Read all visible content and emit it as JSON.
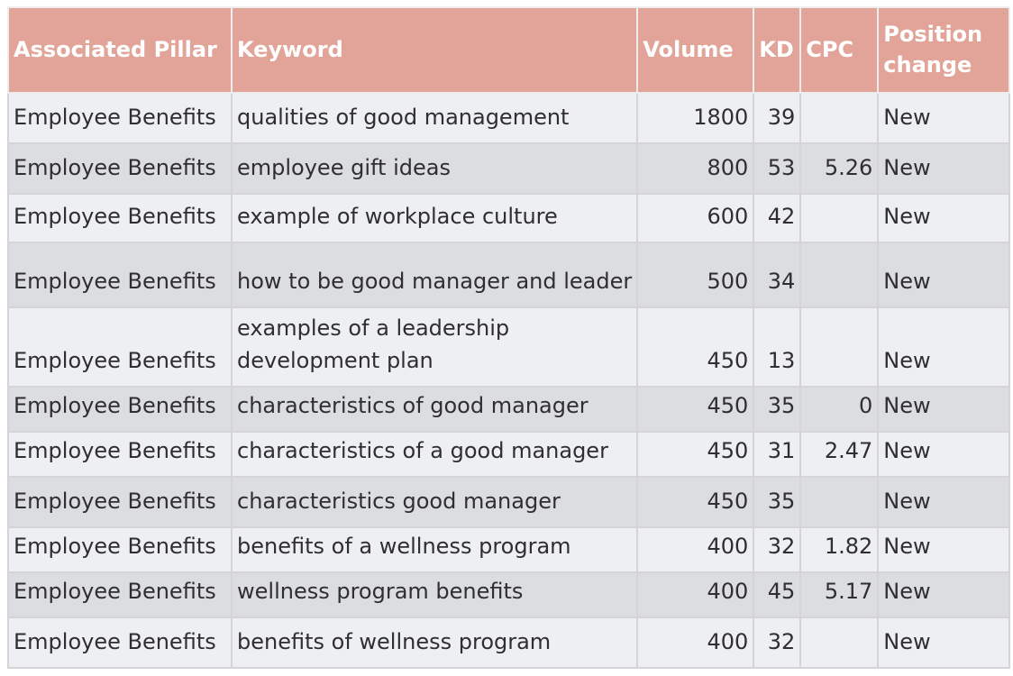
{
  "table": {
    "headers": [
      "Associated Pillar",
      "Keyword",
      "Volume",
      "KD",
      "CPC",
      "Position change"
    ],
    "rows": [
      {
        "pillar": "Employee Benefits",
        "keyword": "qualities of good management",
        "volume": "1800",
        "kd": "39",
        "cpc": "",
        "position": "New"
      },
      {
        "pillar": "Employee Benefits",
        "keyword": "employee gift ideas",
        "volume": "800",
        "kd": "53",
        "cpc": "5.26",
        "position": "New"
      },
      {
        "pillar": "Employee Benefits",
        "keyword": "example of workplace culture",
        "volume": "600",
        "kd": "42",
        "cpc": "",
        "position": "New"
      },
      {
        "pillar": "Employee Benefits",
        "keyword": "how to be good manager and leader",
        "volume": "500",
        "kd": "34",
        "cpc": "",
        "position": "New"
      },
      {
        "pillar": "Employee Benefits",
        "keyword": "examples of a leadership development plan",
        "volume": "450",
        "kd": "13",
        "cpc": "",
        "position": "New"
      },
      {
        "pillar": "Employee Benefits",
        "keyword": "characteristics of good manager",
        "volume": "450",
        "kd": "35",
        "cpc": "0",
        "position": "New"
      },
      {
        "pillar": "Employee Benefits",
        "keyword": "characteristics of a good manager",
        "volume": "450",
        "kd": "31",
        "cpc": "2.47",
        "position": "New"
      },
      {
        "pillar": "Employee Benefits",
        "keyword": "characteristics good manager",
        "volume": "450",
        "kd": "35",
        "cpc": "",
        "position": "New"
      },
      {
        "pillar": "Employee Benefits",
        "keyword": "benefits of a wellness program",
        "volume": "400",
        "kd": "32",
        "cpc": "1.82",
        "position": "New"
      },
      {
        "pillar": "Employee Benefits",
        "keyword": "wellness program benefits",
        "volume": "400",
        "kd": "45",
        "cpc": "5.17",
        "position": "New"
      },
      {
        "pillar": "Employee Benefits",
        "keyword": "benefits of wellness program",
        "volume": "400",
        "kd": "32",
        "cpc": "",
        "position": "New"
      }
    ]
  },
  "colors": {
    "header_bg": "#e2a498",
    "header_text": "#ffffff",
    "row_light": "#eeeff2",
    "row_dark": "#dcdde1",
    "grid": "#d5d5d8"
  }
}
